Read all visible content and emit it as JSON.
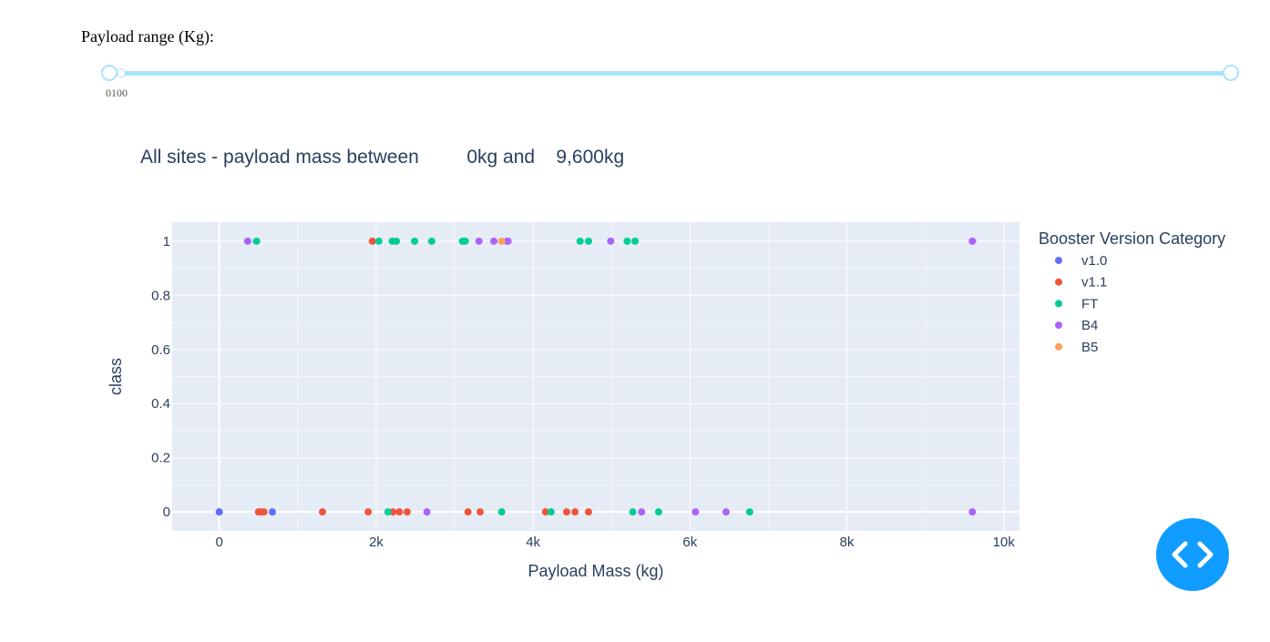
{
  "slider": {
    "label": "Payload range (Kg):",
    "marks": [
      "0",
      "100"
    ],
    "value_min": 0,
    "value_max": 10000
  },
  "chart_title": {
    "prefix": "All sites - payload mass between",
    "low": "0kg",
    "mid": "and",
    "high": "9,600kg"
  },
  "colors": {
    "plot_bg": "#e5ecf6",
    "grid": "#ffffff",
    "text": "#2a3f5f",
    "slider": "#abe2fb",
    "button": "#119dff"
  },
  "icons": {
    "debug_button": "code-brackets-icon"
  },
  "chart_data": {
    "type": "scatter",
    "xlabel": "Payload Mass (kg)",
    "ylabel": "class",
    "xlim": [
      -600,
      10200
    ],
    "ylim": [
      -0.07,
      1.07
    ],
    "xticks": [
      0,
      2000,
      4000,
      6000,
      8000,
      10000
    ],
    "xtick_labels": [
      "0",
      "2k",
      "4k",
      "6k",
      "8k",
      "10k"
    ],
    "yticks": [
      0,
      0.2,
      0.4,
      0.6,
      0.8,
      1
    ],
    "ytick_labels": [
      "0",
      "0.2",
      "0.4",
      "0.6",
      "0.8",
      "1"
    ],
    "grid": true,
    "legend_title": "Booster Version Category",
    "legend_position": "right",
    "series": [
      {
        "name": "v1.0",
        "color": "#636efa",
        "x": [
          0,
          0,
          677
        ],
        "y": [
          0,
          0,
          0
        ]
      },
      {
        "name": "v1.1",
        "color": "#ef553b",
        "x": [
          500,
          525,
          570,
          1316,
          1898,
          1952,
          2216,
          2296,
          2395,
          3170,
          3325,
          4159,
          4428,
          4535,
          4707
        ],
        "y": [
          0,
          0,
          0,
          0,
          0,
          1,
          0,
          0,
          0,
          0,
          0,
          0,
          0,
          0,
          0
        ]
      },
      {
        "name": "FT",
        "color": "#00cc96",
        "x": [
          475,
          2034,
          2150,
          2205,
          2257,
          2490,
          2708,
          3100,
          3136,
          3600,
          4230,
          4600,
          4707,
          5200,
          5271,
          5300,
          5600,
          6761
        ],
        "y": [
          1,
          1,
          0,
          1,
          1,
          1,
          1,
          1,
          1,
          0,
          0,
          1,
          1,
          1,
          0,
          1,
          0,
          0
        ]
      },
      {
        "name": "B4",
        "color": "#ab63fa",
        "x": [
          362,
          2647,
          3310,
          3500,
          3669,
          3681,
          4990,
          5384,
          6070,
          6460,
          9600,
          9600
        ],
        "y": [
          1,
          0,
          1,
          1,
          1,
          1,
          1,
          0,
          0,
          0,
          1,
          0
        ]
      },
      {
        "name": "B5",
        "color": "#ffa15a",
        "x": [
          3600
        ],
        "y": [
          1
        ]
      }
    ]
  }
}
